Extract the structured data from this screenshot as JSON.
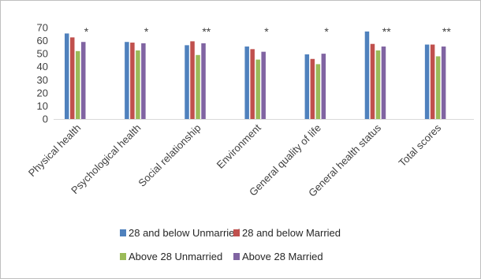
{
  "chart_data": {
    "type": "bar",
    "title": "",
    "xlabel": "",
    "ylabel": "",
    "ylim": [
      0,
      70
    ],
    "yticks": [
      0,
      10,
      20,
      30,
      40,
      50,
      60,
      70
    ],
    "grid": false,
    "legend_position": "bottom",
    "categories": [
      "Physical health",
      "Psychological health",
      "Social relationship",
      "Environment",
      "General quality of life",
      "General health status",
      "Total scores"
    ],
    "significance": [
      "*",
      "*",
      "**",
      "*",
      "*",
      "**",
      "**"
    ],
    "series": [
      {
        "name": "28 and below Unmarried",
        "color": "#4f81bd",
        "values": [
          65.5,
          59,
          56.5,
          55.5,
          49.5,
          67,
          57
        ]
      },
      {
        "name": "28 and below Married",
        "color": "#c0504d",
        "values": [
          62.5,
          58.5,
          59.5,
          53.5,
          46,
          57.5,
          57
        ]
      },
      {
        "name": "Above 28 Unmarried",
        "color": "#9bbb59",
        "values": [
          52,
          52.5,
          49,
          45.5,
          42,
          52.5,
          48
        ]
      },
      {
        "name": "Above 28 Married",
        "color": "#8064a2",
        "values": [
          59,
          58,
          58,
          51.5,
          50,
          55.5,
          55.5
        ]
      }
    ]
  }
}
